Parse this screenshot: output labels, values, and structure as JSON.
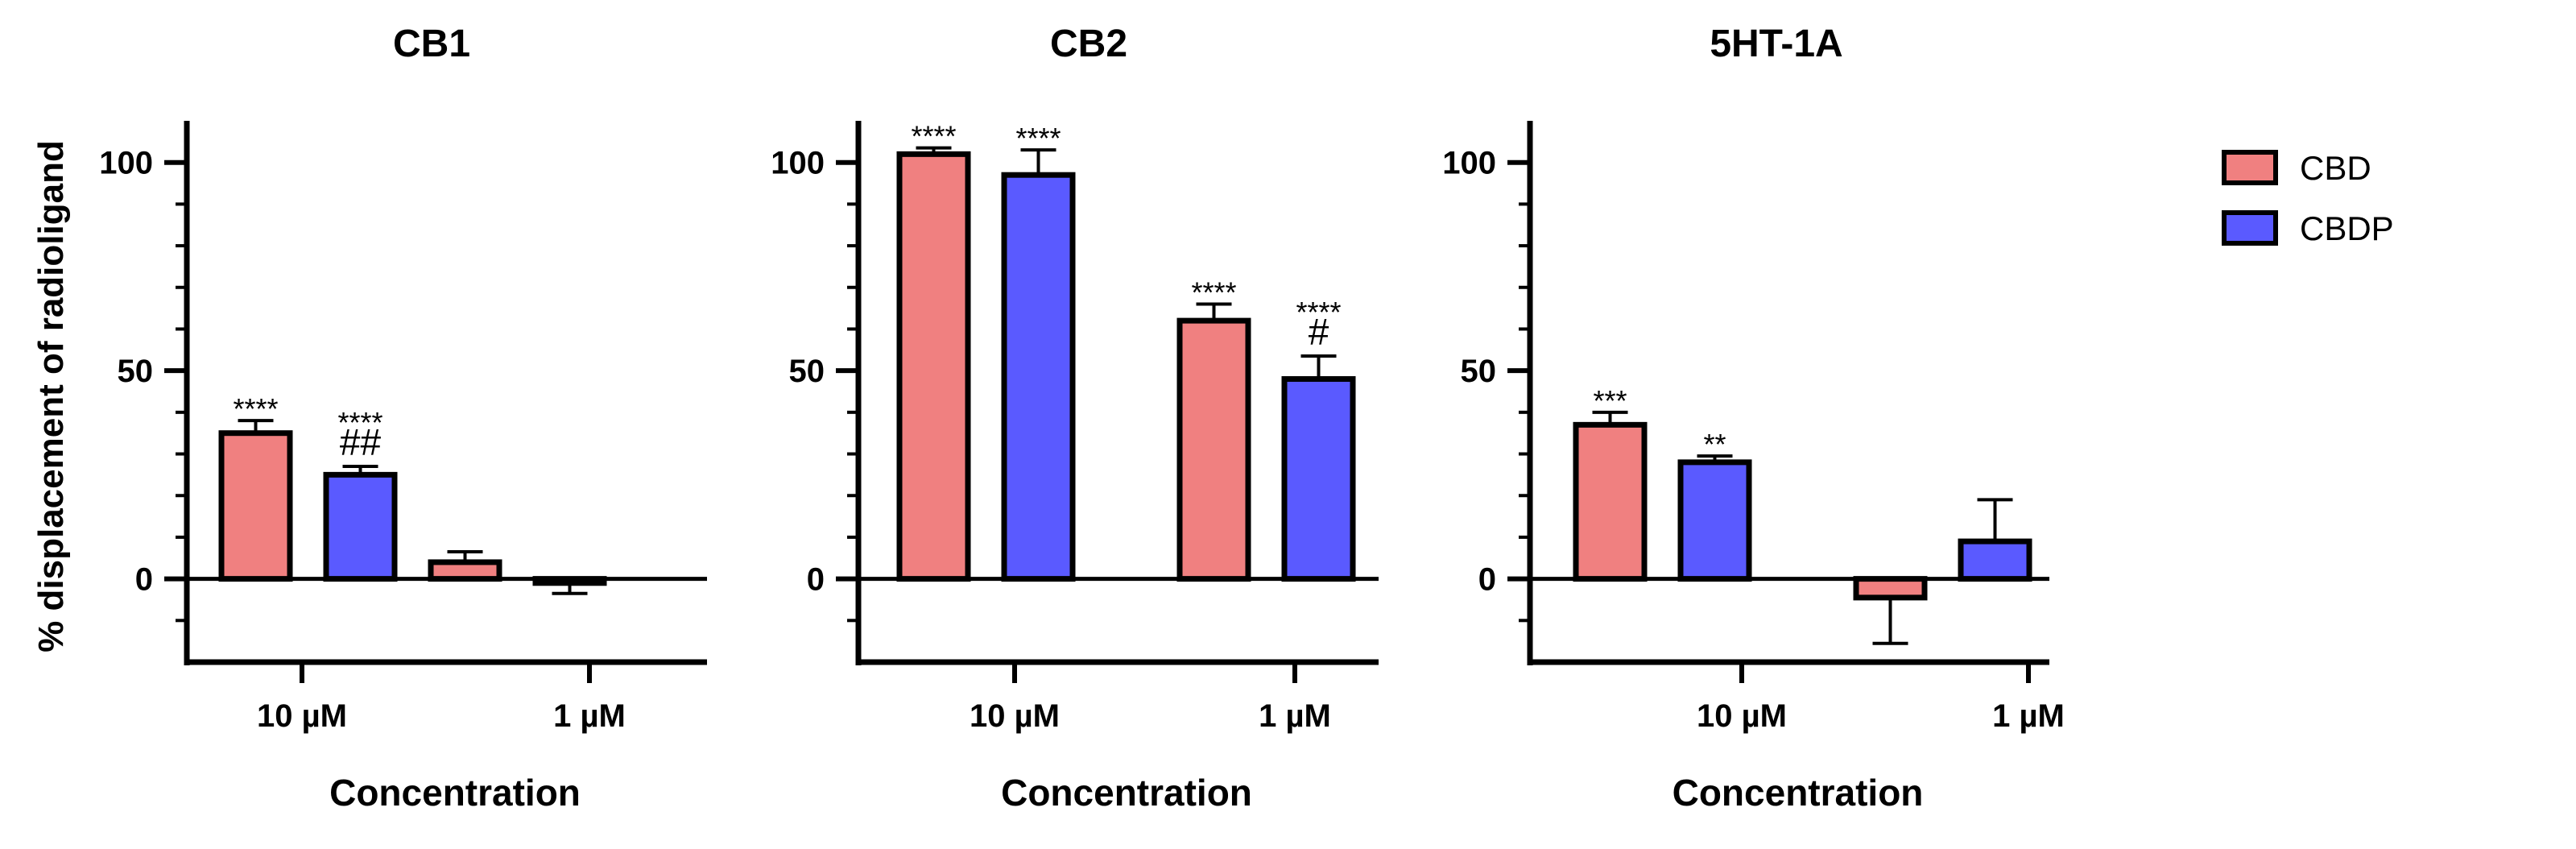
{
  "chart_data": [
    {
      "type": "bar",
      "title": "CB1",
      "xlabel": "Concentration",
      "ylabel": "% displacement of radioligand",
      "ylim": [
        -20,
        110
      ],
      "yticks": [
        "0",
        "50",
        "100"
      ],
      "categories": [
        "10 µM",
        "1 µM"
      ],
      "series": [
        {
          "name": "CBD",
          "values": [
            35,
            4
          ],
          "errors": [
            3,
            2.5
          ],
          "stars": [
            "****",
            ""
          ],
          "hash": [
            "",
            ""
          ]
        },
        {
          "name": "CBDP",
          "values": [
            25,
            -1
          ],
          "errors": [
            2,
            2.5
          ],
          "stars": [
            "****",
            ""
          ],
          "hash": [
            "##",
            ""
          ]
        }
      ]
    },
    {
      "type": "bar",
      "title": "CB2",
      "xlabel": "Concentration",
      "ylabel": "",
      "ylim": [
        -20,
        110
      ],
      "yticks": [
        "0",
        "50",
        "100"
      ],
      "categories": [
        "10 µM",
        "1 µM"
      ],
      "series": [
        {
          "name": "CBD",
          "values": [
            102,
            62
          ],
          "errors": [
            1.5,
            4
          ],
          "stars": [
            "****",
            "****"
          ],
          "hash": [
            "",
            ""
          ]
        },
        {
          "name": "CBDP",
          "values": [
            97,
            48
          ],
          "errors": [
            6,
            5.5
          ],
          "stars": [
            "****",
            "****"
          ],
          "hash": [
            "",
            "#"
          ]
        }
      ]
    },
    {
      "type": "bar",
      "title": "5HT-1A",
      "xlabel": "Concentration",
      "ylabel": "",
      "ylim": [
        -20,
        110
      ],
      "yticks": [
        "0",
        "50",
        "100"
      ],
      "categories": [
        "10 µM",
        "1 µM"
      ],
      "series": [
        {
          "name": "CBD",
          "values": [
            37,
            -4.5
          ],
          "errors": [
            3,
            11
          ],
          "stars": [
            "***",
            ""
          ],
          "hash": [
            "",
            ""
          ]
        },
        {
          "name": "CBDP",
          "values": [
            28,
            9
          ],
          "errors": [
            1.5,
            10
          ],
          "stars": [
            "**",
            ""
          ],
          "hash": [
            "",
            ""
          ]
        }
      ]
    }
  ],
  "legend": {
    "placement": "right",
    "items": [
      {
        "label": "CBD",
        "color": "#f08080"
      },
      {
        "label": "CBDP",
        "color": "#5a5aff"
      }
    ]
  },
  "colors": {
    "CBD": "#f08080",
    "CBDP": "#5a5aff",
    "axis": "#000000"
  }
}
